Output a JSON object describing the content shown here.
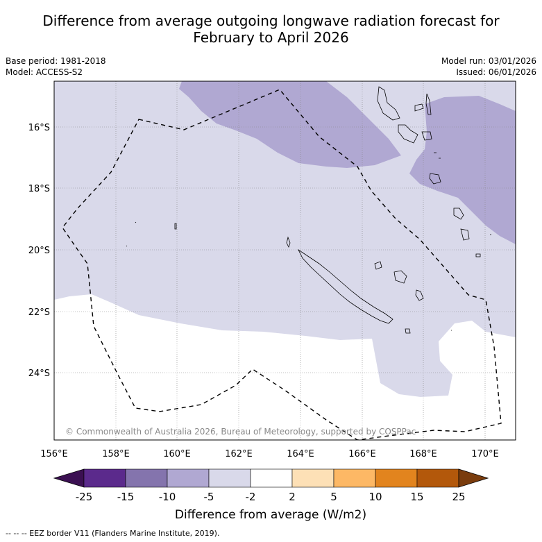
{
  "title_line1": "Difference from average outgoing longwave radiation forecast for",
  "title_line2": "February to April 2026",
  "base_period": "Base period: 1981-2018",
  "model": "Model: ACCESS-S2",
  "model_run": "Model run: 03/01/2026",
  "issued": "Issued: 06/01/2026",
  "copyright": "© Commonwealth of Australia 2026, Bureau of Meteorology, supported by COSPPac",
  "lon_ticks": [
    "156°E",
    "158°E",
    "160°E",
    "162°E",
    "164°E",
    "166°E",
    "168°E",
    "170°E"
  ],
  "lat_ticks": [
    "16°S",
    "18°S",
    "20°S",
    "22°S",
    "24°S"
  ],
  "colorbar": {
    "title": "Difference from average (W/m2)",
    "labels": [
      "-25",
      "-15",
      "-10",
      "-5",
      "-2",
      "2",
      "5",
      "10",
      "15",
      "25"
    ],
    "colors": [
      "#3b1052",
      "#5b2a8c",
      "#8474ad",
      "#b0a8d2",
      "#d9d9ea",
      "#ffffff",
      "#fde0b6",
      "#fdb865",
      "#e2841e",
      "#b3580b",
      "#7a3c0d"
    ]
  },
  "footnote": "--  --  -- EEZ border V11 (Flanders Marine Institute, 2019).",
  "palette": {
    "light_purple": "#d9d9ea",
    "mid_purple": "#b0a8d2"
  }
}
